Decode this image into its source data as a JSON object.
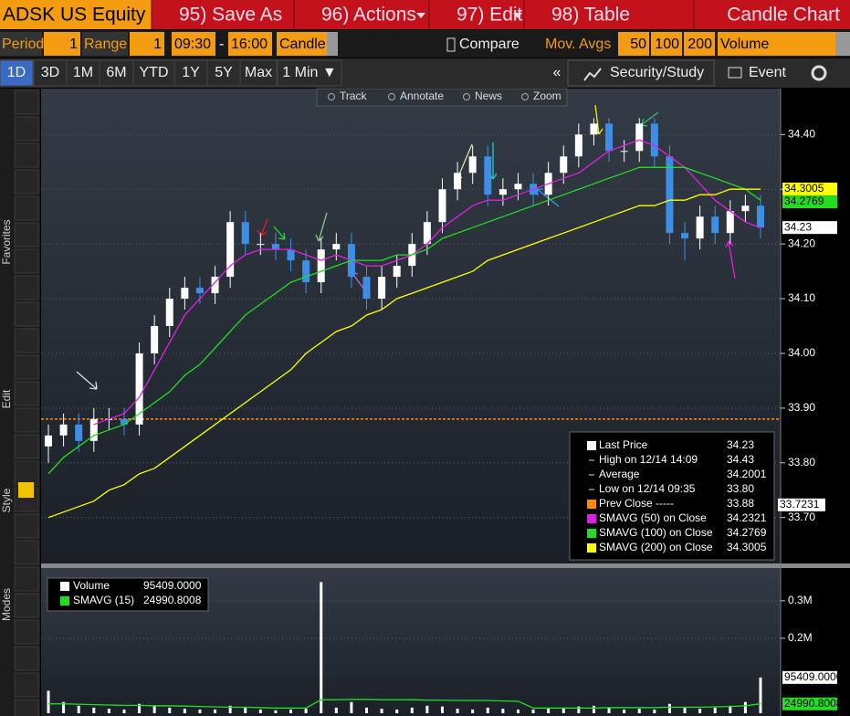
{
  "toolbar": {
    "security": "ADSK US Equity",
    "menu": [
      "95) Save As",
      "96) Actions",
      "97) Edit",
      "98) Table"
    ],
    "chart_name": "Candle Chart"
  },
  "settings": {
    "period_label": "Period",
    "period": "1",
    "range_label": "Range",
    "range": "1",
    "start": "09:30",
    "dash": "-",
    "end": "16:00",
    "style": "Candle",
    "compare": "Compare",
    "mov_avgs_label": "Mov. Avgs",
    "mov_avgs": [
      "50",
      "100",
      "200"
    ],
    "lower": "Volume"
  },
  "ranges": [
    "1D",
    "3D",
    "1M",
    "6M",
    "YTD",
    "1Y",
    "5Y",
    "Max",
    "1 Min ▼"
  ],
  "right_buttons": [
    "«",
    "Security/Study",
    "Event"
  ],
  "chart_tools": [
    "Track",
    "Annotate",
    "News",
    "Zoom"
  ],
  "side_labels": [
    "Favorites",
    "Edit",
    "Style",
    "Modes"
  ],
  "chart_data": [
    {
      "type": "candlestick",
      "open": [
        33.83,
        33.85,
        33.87,
        33.84,
        33.88,
        33.88,
        33.87,
        34.0,
        34.05,
        34.1,
        34.12,
        34.11,
        34.14,
        34.24,
        34.2,
        34.2,
        34.19,
        34.17,
        34.13,
        34.19,
        34.2,
        34.14,
        34.1,
        34.14,
        34.16,
        34.2,
        34.24,
        34.3,
        34.33,
        34.36,
        34.29,
        34.3,
        34.31,
        34.29,
        34.33,
        34.36,
        34.4,
        34.42,
        34.37,
        34.37,
        34.42,
        34.36,
        34.22,
        34.21,
        34.25,
        34.22,
        34.26,
        34.27
      ],
      "high": [
        33.87,
        33.89,
        33.89,
        33.9,
        33.9,
        33.9,
        34.02,
        34.07,
        34.12,
        34.14,
        34.14,
        34.16,
        34.26,
        34.26,
        34.22,
        34.22,
        34.21,
        34.19,
        34.21,
        34.22,
        34.22,
        34.16,
        34.16,
        34.18,
        34.22,
        34.26,
        34.32,
        34.35,
        34.38,
        34.38,
        34.32,
        34.33,
        34.33,
        34.35,
        34.38,
        34.42,
        34.43,
        34.43,
        34.39,
        34.43,
        34.43,
        34.38,
        34.24,
        34.27,
        34.27,
        34.28,
        34.29,
        34.29
      ],
      "low": [
        33.8,
        33.83,
        33.82,
        33.82,
        33.86,
        33.85,
        33.85,
        33.98,
        34.03,
        34.08,
        34.09,
        34.09,
        34.12,
        34.18,
        34.18,
        34.17,
        34.15,
        34.11,
        34.11,
        34.17,
        34.12,
        34.08,
        34.08,
        34.12,
        34.14,
        34.18,
        34.22,
        34.28,
        34.31,
        34.27,
        34.27,
        34.28,
        34.27,
        34.27,
        34.31,
        34.34,
        34.38,
        34.35,
        34.35,
        34.35,
        34.34,
        34.2,
        34.17,
        34.19,
        34.2,
        34.2,
        34.24,
        34.21
      ],
      "close": [
        33.85,
        33.87,
        33.84,
        33.88,
        33.88,
        33.87,
        34.0,
        34.05,
        34.1,
        34.12,
        34.11,
        34.14,
        34.24,
        34.2,
        34.2,
        34.19,
        34.17,
        34.13,
        34.19,
        34.2,
        34.14,
        34.1,
        34.14,
        34.16,
        34.2,
        34.24,
        34.3,
        34.33,
        34.36,
        34.29,
        34.3,
        34.31,
        34.29,
        34.33,
        34.36,
        34.4,
        34.42,
        34.37,
        34.37,
        34.42,
        34.36,
        34.22,
        34.21,
        34.25,
        34.22,
        34.26,
        34.27,
        34.23
      ],
      "up_color": "#ffffff",
      "down_color": "#3d8fe6",
      "ylim": [
        33.616,
        34.484
      ],
      "yticks": [
        {
          "value": 33.7,
          "label": "33.70"
        },
        {
          "value": 33.8,
          "label": "33.80"
        },
        {
          "value": 33.9,
          "label": "33.90"
        },
        {
          "value": 34.0,
          "label": "34.00"
        },
        {
          "value": 34.1,
          "label": "34.10"
        },
        {
          "value": 34.2,
          "label": "34.20"
        },
        {
          "value": 34.3,
          "label": "34.30"
        },
        {
          "value": 34.4,
          "label": "34.40"
        }
      ],
      "grid": true,
      "prev_close": {
        "value": 33.88,
        "color": "#ff8c00"
      },
      "series": [
        {
          "name": "SMAVG (50) on Close",
          "color": "#e020e0",
          "last_label": "34.2321",
          "values": [
            null,
            null,
            null,
            33.87,
            33.88,
            33.89,
            33.92,
            33.97,
            34.02,
            34.07,
            34.1,
            34.13,
            34.16,
            34.18,
            34.19,
            34.19,
            34.19,
            34.18,
            34.17,
            34.18,
            34.17,
            34.16,
            34.16,
            34.17,
            34.18,
            34.2,
            34.23,
            34.25,
            34.27,
            34.28,
            34.28,
            34.29,
            34.3,
            34.31,
            34.32,
            34.33,
            34.35,
            34.37,
            34.38,
            34.39,
            34.38,
            34.36,
            34.34,
            34.31,
            34.28,
            34.26,
            34.24,
            34.23
          ]
        },
        {
          "name": "SMAVG (100) on Close",
          "color": "#22dd22",
          "last_label": "34.2769",
          "values": [
            33.78,
            33.81,
            33.83,
            33.85,
            33.86,
            33.87,
            33.89,
            33.91,
            33.93,
            33.96,
            33.98,
            34.01,
            34.04,
            34.07,
            34.09,
            34.11,
            34.13,
            34.14,
            34.15,
            34.16,
            34.17,
            34.17,
            34.17,
            34.18,
            34.18,
            34.19,
            34.21,
            34.22,
            34.23,
            34.24,
            34.25,
            34.26,
            34.27,
            34.28,
            34.29,
            34.3,
            34.31,
            34.32,
            34.33,
            34.34,
            34.34,
            34.34,
            34.34,
            34.33,
            34.32,
            34.31,
            34.3,
            34.28
          ]
        },
        {
          "name": "SMAVG (200) on Close",
          "color": "#ffff00",
          "last_label": "34.3005",
          "values": [
            33.7,
            33.71,
            33.72,
            33.73,
            33.75,
            33.76,
            33.78,
            33.79,
            33.81,
            33.83,
            33.85,
            33.87,
            33.89,
            33.91,
            33.93,
            33.95,
            33.97,
            34.0,
            34.02,
            34.04,
            34.05,
            34.07,
            34.08,
            34.1,
            34.11,
            34.12,
            34.13,
            34.14,
            34.15,
            34.17,
            34.18,
            34.19,
            34.2,
            34.21,
            34.22,
            34.23,
            34.24,
            34.25,
            34.26,
            34.27,
            34.27,
            34.28,
            34.28,
            34.29,
            34.29,
            34.3,
            34.3,
            34.3
          ]
        }
      ],
      "tags": [
        {
          "value": 34.3005,
          "color": "#ffff00"
        },
        {
          "value": 34.2769,
          "color": "#22dd22"
        },
        {
          "value": 34.23,
          "color": "#ffffff"
        },
        {
          "value": 33.7231,
          "color": "#ffffff",
          "inside": true
        }
      ],
      "legend_rows": [
        {
          "label": "Last Price",
          "value": "34.23",
          "color": "#ffffff"
        },
        {
          "label": "High on 12/14 14:09",
          "value": "34.43"
        },
        {
          "label": "Average",
          "value": "34.2001"
        },
        {
          "label": "Low on 12/14 09:35",
          "value": "33.80"
        },
        {
          "label": "Prev Close -----",
          "value": "33.88",
          "color": "#ff8c00"
        }
      ]
    },
    {
      "type": "bar",
      "name": "Volume",
      "last_label": "95409.0000",
      "color": "#ffffff",
      "values": [
        60000,
        30000,
        20000,
        15000,
        12000,
        10000,
        25000,
        20000,
        15000,
        12000,
        10000,
        10000,
        20000,
        15000,
        10000,
        8000,
        10000,
        12000,
        350000,
        15000,
        30000,
        15000,
        12000,
        10000,
        15000,
        20000,
        18000,
        12000,
        10000,
        15000,
        12000,
        10000,
        10000,
        12000,
        15000,
        18000,
        20000,
        15000,
        10000,
        12000,
        10000,
        25000,
        15000,
        12000,
        15000,
        20000,
        30000,
        95409
      ],
      "ylim": [
        0,
        380000
      ],
      "yticks": [
        {
          "value": 200000,
          "label": "0.2M"
        },
        {
          "value": 300000,
          "label": "0.3M"
        }
      ],
      "grid": true,
      "series": [
        {
          "name": "SMAVG (15)",
          "color": "#22dd22",
          "last_label": "24990.8008",
          "values": [
            25000,
            25000,
            24000,
            23000,
            22000,
            21000,
            21000,
            20000,
            20000,
            19000,
            18000,
            17000,
            16000,
            16000,
            15000,
            14000,
            14000,
            14000,
            36000,
            36000,
            37000,
            37000,
            36000,
            36000,
            36000,
            35000,
            35000,
            34000,
            34000,
            34000,
            33000,
            32000,
            14000,
            14000,
            14000,
            14000,
            14000,
            15000,
            15000,
            15000,
            15000,
            16000,
            16000,
            16000,
            17000,
            18000,
            20000,
            24990.8008
          ]
        }
      ],
      "tags": [
        {
          "value": 95409,
          "label": "95409.0000",
          "color": "#ffffff"
        },
        {
          "value": 24990.8008,
          "label": "24990.8008",
          "color": "#22dd22"
        }
      ]
    }
  ]
}
